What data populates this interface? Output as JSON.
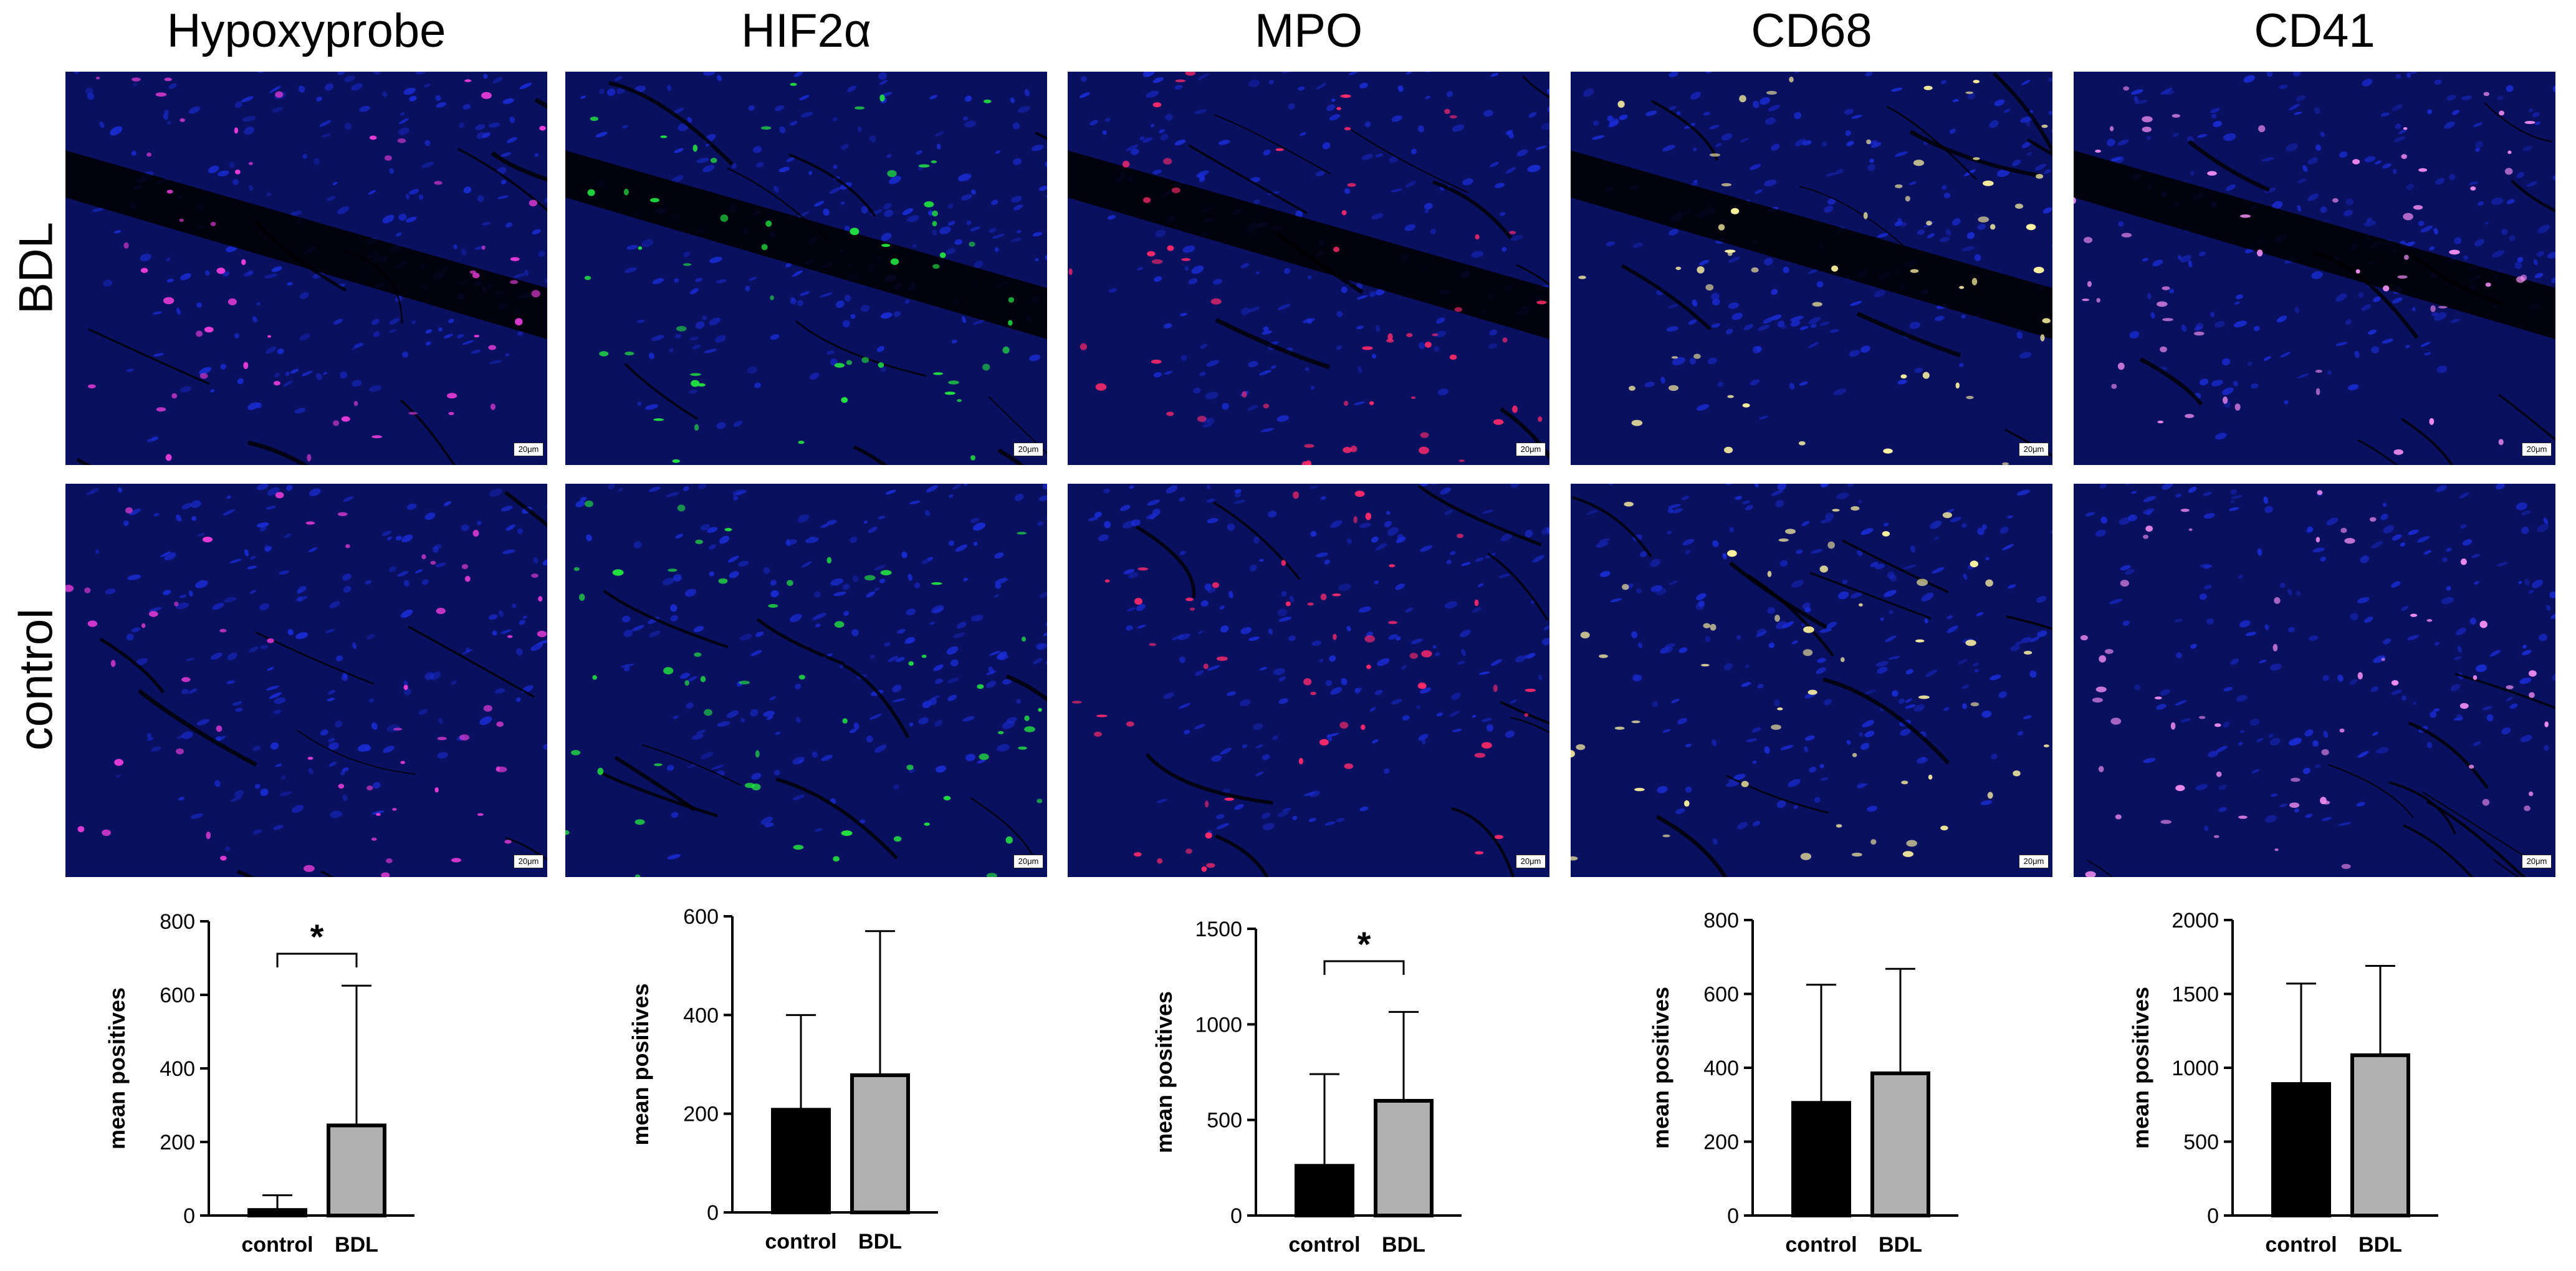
{
  "column_titles": [
    "Hypoxyprobe",
    "HIF2α",
    "MPO",
    "CD68",
    "CD41"
  ],
  "row_labels": [
    "BDL",
    "control"
  ],
  "scale_bar_label": "20μm",
  "stain_colors": {
    "background": "#0a1060",
    "nuclei": "#1a2dd8",
    "Hypoxyprobe": "#e83cd8",
    "HIF2α": "#22e040",
    "MPO": "#ff2a6a",
    "CD68": "#fff4a0",
    "CD41": "#f08cf0"
  },
  "bar_colors": {
    "control": "#000000",
    "BDL": "#b0b0b0"
  },
  "chart_data": [
    {
      "type": "bar",
      "title": "",
      "ylabel": "mean positives",
      "categories": [
        "control",
        "BDL"
      ],
      "values": [
        15,
        245
      ],
      "error_upper": [
        55,
        625
      ],
      "ylim": [
        0,
        800
      ],
      "yticks": [
        0,
        200,
        400,
        600,
        800
      ],
      "significance": "*"
    },
    {
      "type": "bar",
      "title": "",
      "ylabel": "mean positives",
      "categories": [
        "control",
        "BDL"
      ],
      "values": [
        208,
        278
      ],
      "error_upper": [
        400,
        570
      ],
      "ylim": [
        0,
        600
      ],
      "yticks": [
        0,
        200,
        400,
        600
      ],
      "significance": ""
    },
    {
      "type": "bar",
      "title": "",
      "ylabel": "mean positives",
      "categories": [
        "control",
        "BDL"
      ],
      "values": [
        260,
        600
      ],
      "error_upper": [
        740,
        1065
      ],
      "ylim": [
        0,
        1500
      ],
      "yticks": [
        0,
        500,
        1000,
        1500
      ],
      "significance": "*"
    },
    {
      "type": "bar",
      "title": "",
      "ylabel": "mean positives",
      "categories": [
        "control",
        "BDL"
      ],
      "values": [
        305,
        385
      ],
      "error_upper": [
        625,
        668
      ],
      "ylim": [
        0,
        800
      ],
      "yticks": [
        0,
        200,
        400,
        600,
        800
      ],
      "significance": ""
    },
    {
      "type": "bar",
      "title": "",
      "ylabel": "mean positives",
      "categories": [
        "control",
        "BDL"
      ],
      "values": [
        890,
        1085
      ],
      "error_upper": [
        1570,
        1690
      ],
      "ylim": [
        0,
        2000
      ],
      "yticks": [
        0,
        500,
        1000,
        1500,
        2000
      ],
      "significance": ""
    }
  ]
}
